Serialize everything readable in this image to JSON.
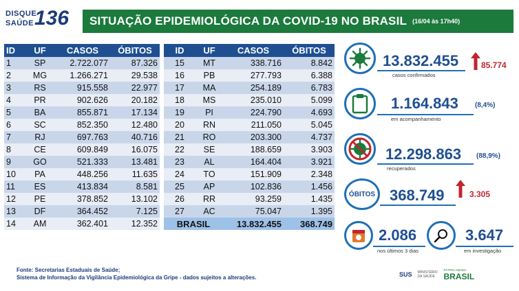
{
  "logo": {
    "line1": "DISQUE",
    "line2": "SAÚDE",
    "number": "136"
  },
  "header": {
    "title": "SITUAÇÃO EPIDEMIOLÓGICA DA COVID-19 NO BRASIL",
    "date": "(16/04 às 17h40)"
  },
  "table": {
    "columns": [
      "ID",
      "UF",
      "CASOS",
      "ÓBITOS"
    ],
    "left": [
      {
        "id": "1",
        "uf": "SP",
        "casos": "2.722.077",
        "obitos": "87.326"
      },
      {
        "id": "2",
        "uf": "MG",
        "casos": "1.266.271",
        "obitos": "29.538"
      },
      {
        "id": "3",
        "uf": "RS",
        "casos": "915.558",
        "obitos": "22.977"
      },
      {
        "id": "4",
        "uf": "PR",
        "casos": "902.626",
        "obitos": "20.182"
      },
      {
        "id": "5",
        "uf": "BA",
        "casos": "855.871",
        "obitos": "17.134"
      },
      {
        "id": "6",
        "uf": "SC",
        "casos": "852.350",
        "obitos": "12.480"
      },
      {
        "id": "7",
        "uf": "RJ",
        "casos": "697.763",
        "obitos": "40.716"
      },
      {
        "id": "8",
        "uf": "CE",
        "casos": "609.849",
        "obitos": "16.075"
      },
      {
        "id": "9",
        "uf": "GO",
        "casos": "521.333",
        "obitos": "13.481"
      },
      {
        "id": "10",
        "uf": "PA",
        "casos": "448.256",
        "obitos": "11.635"
      },
      {
        "id": "11",
        "uf": "ES",
        "casos": "413.834",
        "obitos": "8.581"
      },
      {
        "id": "12",
        "uf": "PE",
        "casos": "378.852",
        "obitos": "13.102"
      },
      {
        "id": "13",
        "uf": "DF",
        "casos": "364.452",
        "obitos": "7.125"
      },
      {
        "id": "14",
        "uf": "AM",
        "casos": "362.401",
        "obitos": "12.352"
      }
    ],
    "right": [
      {
        "id": "15",
        "uf": "MT",
        "casos": "338.716",
        "obitos": "8.842"
      },
      {
        "id": "16",
        "uf": "PB",
        "casos": "277.793",
        "obitos": "6.388"
      },
      {
        "id": "17",
        "uf": "MA",
        "casos": "254.189",
        "obitos": "6.783"
      },
      {
        "id": "18",
        "uf": "MS",
        "casos": "235.010",
        "obitos": "5.099"
      },
      {
        "id": "19",
        "uf": "PI",
        "casos": "224.790",
        "obitos": "4.693"
      },
      {
        "id": "20",
        "uf": "RN",
        "casos": "211.050",
        "obitos": "5.045"
      },
      {
        "id": "21",
        "uf": "RO",
        "casos": "203.300",
        "obitos": "4.737"
      },
      {
        "id": "22",
        "uf": "SE",
        "casos": "188.659",
        "obitos": "3.903"
      },
      {
        "id": "23",
        "uf": "AL",
        "casos": "164.404",
        "obitos": "3.921"
      },
      {
        "id": "24",
        "uf": "TO",
        "casos": "151.909",
        "obitos": "2.348"
      },
      {
        "id": "25",
        "uf": "AP",
        "casos": "102.836",
        "obitos": "1.456"
      },
      {
        "id": "26",
        "uf": "RR",
        "casos": "93.259",
        "obitos": "1.435"
      },
      {
        "id": "27",
        "uf": "AC",
        "casos": "75.047",
        "obitos": "1.395"
      }
    ],
    "total": {
      "label": "BRASIL",
      "casos": "13.832.455",
      "obitos": "368.749"
    }
  },
  "stats": {
    "confirmed": {
      "value": "13.832.455",
      "delta": "85.774",
      "label": "casos confirmados",
      "icon": "virus-icon"
    },
    "monitoring": {
      "value": "1.164.843",
      "pct": "(8,4%)",
      "label": "em acompanhamento",
      "icon": "clipboard-icon"
    },
    "recovered": {
      "value": "12.298.863",
      "pct": "(88,9%)",
      "label": "recuperados",
      "icon": "no-virus-icon"
    },
    "deaths": {
      "title": "ÓBITOS",
      "value": "368.749",
      "delta": "3.305"
    },
    "recent_deaths": {
      "value": "2.086",
      "label": "nos últimos 3 dias",
      "icon": "calendar-icon"
    },
    "investigation": {
      "value": "3.647",
      "label": "em investigação",
      "icon": "magnifier-icon"
    }
  },
  "footer": {
    "line1": "Fonte: Secretarias Estaduais de Saúde;",
    "line2": "Sistema de Informação da Vigilância Epidemiológica da Gripe - dados sujeitos a alterações."
  },
  "footer_logos": {
    "sus": "SUS",
    "ministry": "MINISTÉRIO DA SAÚDE",
    "brasil_sub": "PÁTRIA AMADA",
    "brasil": "BRASIL"
  },
  "colors": {
    "title_bg": "#1b7a3c",
    "header_bg": "#1f4f91",
    "accent": "#1f6fb5",
    "red": "#c0262d"
  }
}
